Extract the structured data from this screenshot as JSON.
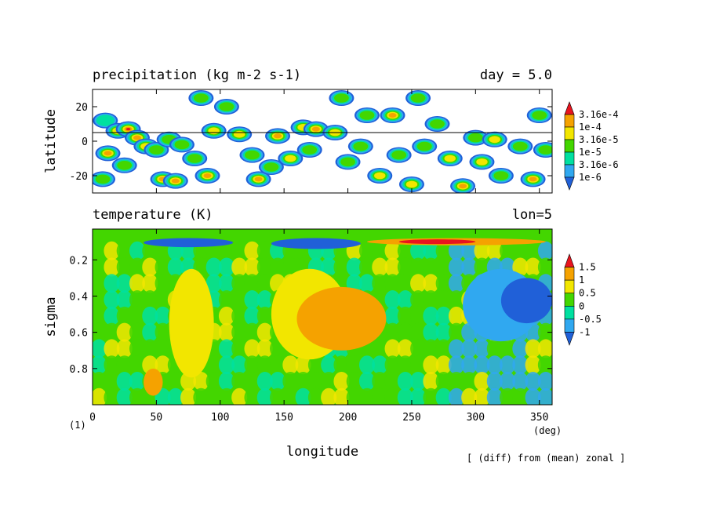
{
  "figure": {
    "panel_label": "(1)",
    "x_unit": "(deg)",
    "xlabel": "longitude",
    "footnote": "[ (diff) from (mean) zonal ]"
  },
  "chart_data": [
    {
      "type": "heatmap",
      "title": "precipitation (kg m-2 s-1)",
      "right_title": "day = 5.0",
      "xlabel": "longitude",
      "ylabel": "latitude",
      "xlim": [
        0,
        360
      ],
      "ylim": [
        -30,
        30
      ],
      "x_ticks": [
        0,
        50,
        100,
        150,
        200,
        250,
        300,
        350
      ],
      "y_ticks": [
        -20,
        0,
        20
      ],
      "reference_line_y": 5,
      "colorbar": {
        "labels": [
          "3.16e-4",
          "1e-4",
          "3.16e-5",
          "1e-5",
          "3.16e-6",
          "1e-6"
        ],
        "colors": [
          "#e8141e",
          "#f5a200",
          "#f2e600",
          "#43d600",
          "#00e0a0",
          "#30a8f0",
          "#2060d8"
        ]
      },
      "cells": [
        {
          "x": 10,
          "y": 12,
          "level": 2
        },
        {
          "x": 20,
          "y": 6,
          "level": 4
        },
        {
          "x": 28,
          "y": 7,
          "level": 6
        },
        {
          "x": 35,
          "y": 2,
          "level": 5
        },
        {
          "x": 42,
          "y": -3,
          "level": 4
        },
        {
          "x": 50,
          "y": -5,
          "level": 3
        },
        {
          "x": 60,
          "y": 1,
          "level": 3
        },
        {
          "x": 70,
          "y": -2,
          "level": 3
        },
        {
          "x": 12,
          "y": -7,
          "level": 5
        },
        {
          "x": 25,
          "y": -14,
          "level": 3
        },
        {
          "x": 8,
          "y": -22,
          "level": 3
        },
        {
          "x": 55,
          "y": -22,
          "level": 5
        },
        {
          "x": 65,
          "y": -23,
          "level": 5
        },
        {
          "x": 90,
          "y": -20,
          "level": 5
        },
        {
          "x": 80,
          "y": -10,
          "level": 3
        },
        {
          "x": 95,
          "y": 6,
          "level": 4
        },
        {
          "x": 105,
          "y": 20,
          "level": 3
        },
        {
          "x": 115,
          "y": 4,
          "level": 4
        },
        {
          "x": 125,
          "y": -8,
          "level": 3
        },
        {
          "x": 130,
          "y": -22,
          "level": 5
        },
        {
          "x": 140,
          "y": -15,
          "level": 3
        },
        {
          "x": 145,
          "y": 3,
          "level": 5
        },
        {
          "x": 155,
          "y": -10,
          "level": 4
        },
        {
          "x": 165,
          "y": 8,
          "level": 4
        },
        {
          "x": 175,
          "y": 7,
          "level": 5
        },
        {
          "x": 170,
          "y": -5,
          "level": 3
        },
        {
          "x": 190,
          "y": 5,
          "level": 4
        },
        {
          "x": 200,
          "y": -12,
          "level": 3
        },
        {
          "x": 210,
          "y": -3,
          "level": 3
        },
        {
          "x": 215,
          "y": 15,
          "level": 3
        },
        {
          "x": 225,
          "y": -20,
          "level": 4
        },
        {
          "x": 235,
          "y": 15,
          "level": 5
        },
        {
          "x": 240,
          "y": -8,
          "level": 3
        },
        {
          "x": 250,
          "y": -25,
          "level": 4
        },
        {
          "x": 260,
          "y": -3,
          "level": 3
        },
        {
          "x": 270,
          "y": 10,
          "level": 3
        },
        {
          "x": 280,
          "y": -10,
          "level": 4
        },
        {
          "x": 290,
          "y": -26,
          "level": 5
        },
        {
          "x": 300,
          "y": 2,
          "level": 3
        },
        {
          "x": 305,
          "y": -12,
          "level": 4
        },
        {
          "x": 315,
          "y": 1,
          "level": 4
        },
        {
          "x": 320,
          "y": -20,
          "level": 3
        },
        {
          "x": 335,
          "y": -3,
          "level": 3
        },
        {
          "x": 345,
          "y": -22,
          "level": 5
        },
        {
          "x": 350,
          "y": 15,
          "level": 3
        },
        {
          "x": 355,
          "y": -5,
          "level": 3
        },
        {
          "x": 255,
          "y": 25,
          "level": 3
        },
        {
          "x": 85,
          "y": 25,
          "level": 3
        },
        {
          "x": 195,
          "y": 25,
          "level": 3
        }
      ]
    },
    {
      "type": "heatmap",
      "title": "temperature (K)",
      "right_title": "lon=5",
      "xlabel": "longitude",
      "ylabel": "sigma",
      "xlim": [
        0,
        360
      ],
      "ylim": [
        1.0,
        0.03
      ],
      "x_ticks": [
        0,
        50,
        100,
        150,
        200,
        250,
        300,
        350
      ],
      "y_ticks": [
        0.2,
        0.4,
        0.6,
        0.8
      ],
      "colorbar": {
        "labels": [
          "1.5",
          "1",
          "0.5",
          "0",
          "-0.5",
          "-1"
        ],
        "colors": [
          "#e8141e",
          "#f5a200",
          "#f2e600",
          "#43d600",
          "#00e0a0",
          "#30a8f0",
          "#2060d8"
        ]
      },
      "features": [
        {
          "x": [
            40,
            110
          ],
          "y": [
            0.08,
            0.13
          ],
          "level": 6
        },
        {
          "x": [
            140,
            210
          ],
          "y": [
            0.08,
            0.14
          ],
          "level": 6
        },
        {
          "x": [
            215,
            355
          ],
          "y": [
            0.08,
            0.12
          ],
          "level": 1
        },
        {
          "x": [
            240,
            300
          ],
          "y": [
            0.09,
            0.11
          ],
          "level": 0
        },
        {
          "x": [
            60,
            95
          ],
          "y": [
            0.25,
            0.85
          ],
          "level": 2
        },
        {
          "x": [
            140,
            200
          ],
          "y": [
            0.25,
            0.75
          ],
          "level": 2
        },
        {
          "x": [
            160,
            230
          ],
          "y": [
            0.35,
            0.7
          ],
          "level": 1
        },
        {
          "x": [
            40,
            55
          ],
          "y": [
            0.8,
            0.95
          ],
          "level": 1
        },
        {
          "x": [
            290,
            350
          ],
          "y": [
            0.25,
            0.65
          ],
          "level": 5
        },
        {
          "x": [
            320,
            360
          ],
          "y": [
            0.3,
            0.55
          ],
          "level": 6
        }
      ]
    }
  ]
}
